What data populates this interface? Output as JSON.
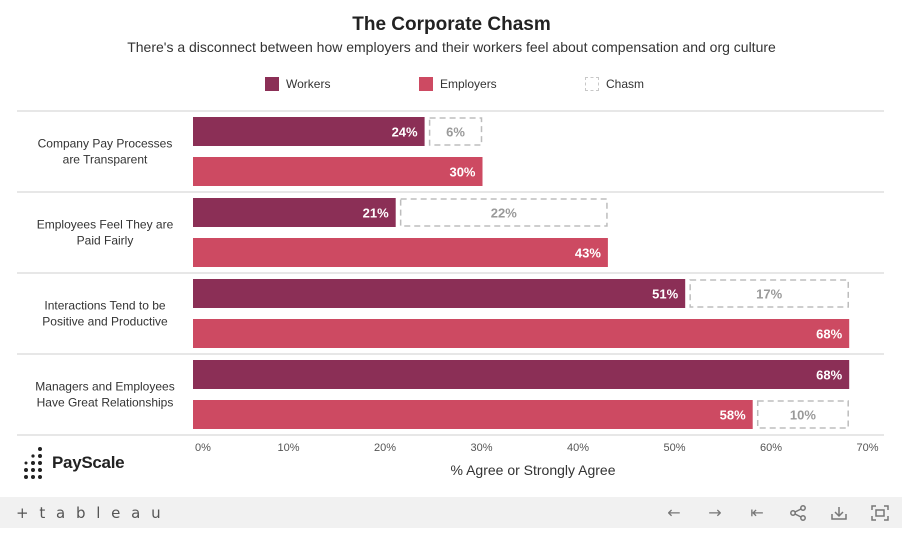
{
  "title": "The Corporate Chasm",
  "subtitle": "There's a disconnect between how employers and their workers feel about compensation and org culture",
  "legend": [
    {
      "label": "Workers",
      "color": "#8b2f56",
      "style": "solid"
    },
    {
      "label": "Employers",
      "color": "#cd4a62",
      "style": "solid"
    },
    {
      "label": "Chasm",
      "color": "#c8c8c8",
      "style": "dashed"
    }
  ],
  "brand": {
    "name": "PayScale"
  },
  "footer": {
    "logo": "+ t a b l e a u",
    "icons": [
      "back-icon",
      "forward-icon",
      "reset-icon",
      "share-icon",
      "download-icon",
      "fullscreen-icon"
    ]
  },
  "chart_data": {
    "type": "bar",
    "orientation": "horizontal",
    "categories": [
      [
        "Company Pay Processes",
        "are Transparent"
      ],
      [
        "Employees Feel They are",
        "Paid Fairly"
      ],
      [
        "Interactions Tend to be",
        "Positive and Productive"
      ],
      [
        "Managers and Employees",
        "Have Great Relationships"
      ]
    ],
    "series": [
      {
        "name": "Workers",
        "values": [
          24,
          21,
          51,
          68
        ],
        "color": "#8b2f56"
      },
      {
        "name": "Employers",
        "values": [
          30,
          43,
          68,
          58
        ],
        "color": "#cd4a62"
      }
    ],
    "chasm": [
      {
        "category_index": 0,
        "attached_to": "Workers",
        "value": 6
      },
      {
        "category_index": 1,
        "attached_to": "Workers",
        "value": 22
      },
      {
        "category_index": 2,
        "attached_to": "Workers",
        "value": 17
      },
      {
        "category_index": 3,
        "attached_to": "Employers",
        "value": 10
      }
    ],
    "xlabel": "% Agree or Strongly Agree",
    "xlim": [
      0,
      70
    ],
    "xticks": [
      "0%",
      "10%",
      "20%",
      "30%",
      "40%",
      "50%",
      "60%",
      "70%"
    ],
    "data_label_suffix": "%",
    "grid": false
  }
}
